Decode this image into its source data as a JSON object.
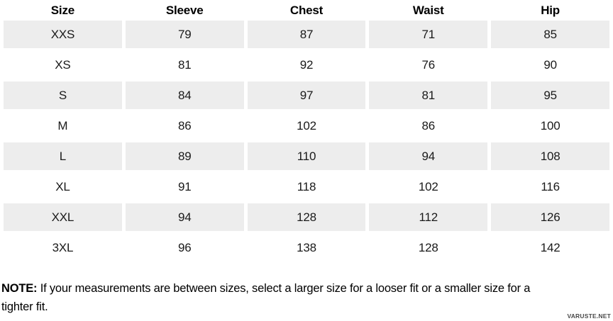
{
  "chart_data": {
    "type": "table",
    "columns": [
      "Size",
      "Sleeve",
      "Chest",
      "Waist",
      "Hip"
    ],
    "rows": [
      [
        "XXS",
        "79",
        "87",
        "71",
        "85"
      ],
      [
        "XS",
        "81",
        "92",
        "76",
        "90"
      ],
      [
        "S",
        "84",
        "97",
        "81",
        "95"
      ],
      [
        "M",
        "86",
        "102",
        "86",
        "100"
      ],
      [
        "L",
        "89",
        "110",
        "94",
        "108"
      ],
      [
        "XL",
        "91",
        "118",
        "102",
        "116"
      ],
      [
        "XXL",
        "94",
        "128",
        "112",
        "126"
      ],
      [
        "3XL",
        "96",
        "138",
        "128",
        "142"
      ]
    ]
  },
  "note": {
    "label": "NOTE:",
    "body": "If your measurements are between sizes, select a larger size for a looser fit or a smaller size for a tighter fit."
  },
  "watermark": "VARUSTE.NET",
  "colors": {
    "row_stripe": "#ededed",
    "header_text": "#000000",
    "cell_text": "#1a1a1a",
    "watermark_text": "#4a4a4a"
  }
}
